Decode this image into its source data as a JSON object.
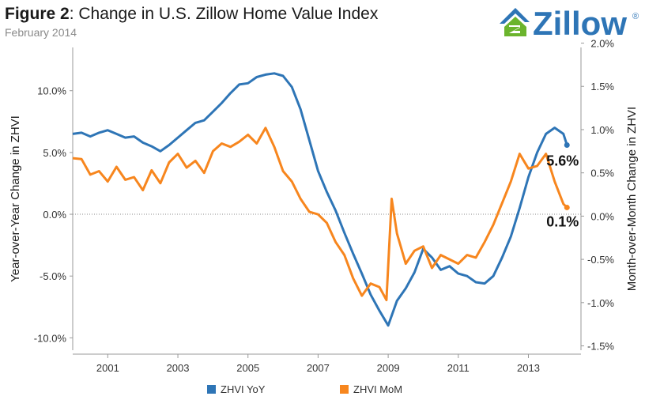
{
  "header": {
    "title_bold": "Figure 2",
    "title_rest": ": Change in U.S. Zillow Home Value Index",
    "subtitle": "February 2014"
  },
  "logo": {
    "text": "Zillow",
    "mark": "®",
    "icon": "zillow-house-icon"
  },
  "colors": {
    "yoy": "#2e75b6",
    "mom": "#f7861e",
    "grid": "#d9d9d9",
    "axis": "#999999"
  },
  "chart_data": {
    "type": "line",
    "x_tick_labels": [
      "2001",
      "2003",
      "2005",
      "2007",
      "2009",
      "2011",
      "2013"
    ],
    "x_tick_years": [
      2001,
      2003,
      2005,
      2007,
      2009,
      2011,
      2013
    ],
    "xlim": [
      2000.0,
      2014.5
    ],
    "ylabel_left": "Year-over-Year Change in ZHVI",
    "ylabel_right": "Month-over-Month Change in ZHVI",
    "ylim_left": [
      -11,
      13.5
    ],
    "ylim_right": [
      -1.55,
      1.95
    ],
    "left_ticks": [
      10,
      5,
      0,
      -5,
      -10
    ],
    "left_tick_labels": [
      "10.0%",
      "5.0%",
      "0.0%",
      "-5.0%",
      "-10.0%"
    ],
    "right_ticks": [
      2,
      1.5,
      1,
      0.5,
      0,
      -0.5,
      -1,
      -1.5
    ],
    "right_tick_labels": [
      "2.0%",
      "1.5%",
      "1.0%",
      "0.5%",
      "0.0%",
      "-0.5%",
      "-1.0%",
      "-1.5%"
    ],
    "series": [
      {
        "name": "ZHVI YoY",
        "axis": "left",
        "x": [
          2000.0,
          2000.25,
          2000.5,
          2000.75,
          2001.0,
          2001.25,
          2001.5,
          2001.75,
          2002.0,
          2002.25,
          2002.5,
          2002.75,
          2003.0,
          2003.25,
          2003.5,
          2003.75,
          2004.0,
          2004.25,
          2004.5,
          2004.75,
          2005.0,
          2005.25,
          2005.5,
          2005.75,
          2006.0,
          2006.25,
          2006.5,
          2006.75,
          2007.0,
          2007.25,
          2007.5,
          2007.75,
          2008.0,
          2008.25,
          2008.5,
          2008.75,
          2009.0,
          2009.25,
          2009.5,
          2009.75,
          2010.0,
          2010.25,
          2010.5,
          2010.75,
          2011.0,
          2011.25,
          2011.5,
          2011.75,
          2012.0,
          2012.25,
          2012.5,
          2012.75,
          2013.0,
          2013.25,
          2013.5,
          2013.75,
          2014.0,
          2014.1
        ],
        "values": [
          6.5,
          6.6,
          6.3,
          6.6,
          6.8,
          6.5,
          6.2,
          6.3,
          5.8,
          5.5,
          5.1,
          5.6,
          6.2,
          6.8,
          7.4,
          7.6,
          8.3,
          9.0,
          9.8,
          10.5,
          10.6,
          11.1,
          11.3,
          11.4,
          11.2,
          10.3,
          8.5,
          6.0,
          3.5,
          1.8,
          0.3,
          -1.5,
          -3.2,
          -4.8,
          -6.5,
          -7.8,
          -9.0,
          -7.0,
          -6.0,
          -4.7,
          -2.8,
          -3.5,
          -4.5,
          -4.2,
          -4.8,
          -5.0,
          -5.5,
          -5.6,
          -5.0,
          -3.5,
          -1.8,
          0.5,
          3.0,
          5.0,
          6.5,
          7.0,
          6.5,
          5.6
        ]
      },
      {
        "name": "ZHVI MoM",
        "axis": "right",
        "x": [
          2000.0,
          2000.25,
          2000.5,
          2000.75,
          2001.0,
          2001.25,
          2001.5,
          2001.75,
          2002.0,
          2002.25,
          2002.5,
          2002.75,
          2003.0,
          2003.25,
          2003.5,
          2003.75,
          2004.0,
          2004.25,
          2004.5,
          2004.75,
          2005.0,
          2005.25,
          2005.5,
          2005.75,
          2006.0,
          2006.25,
          2006.5,
          2006.75,
          2007.0,
          2007.25,
          2007.5,
          2007.75,
          2008.0,
          2008.25,
          2008.5,
          2008.75,
          2008.95,
          2009.1,
          2009.25,
          2009.5,
          2009.75,
          2010.0,
          2010.25,
          2010.5,
          2010.75,
          2011.0,
          2011.25,
          2011.5,
          2011.75,
          2012.0,
          2012.25,
          2012.5,
          2012.75,
          2013.0,
          2013.25,
          2013.5,
          2013.75,
          2014.0,
          2014.1
        ],
        "values": [
          0.67,
          0.66,
          0.48,
          0.52,
          0.4,
          0.57,
          0.42,
          0.45,
          0.3,
          0.53,
          0.38,
          0.62,
          0.72,
          0.56,
          0.64,
          0.5,
          0.75,
          0.84,
          0.8,
          0.86,
          0.94,
          0.84,
          1.02,
          0.8,
          0.52,
          0.4,
          0.2,
          0.05,
          0.02,
          -0.08,
          -0.3,
          -0.45,
          -0.72,
          -0.92,
          -0.78,
          -0.82,
          -0.97,
          0.2,
          -0.2,
          -0.55,
          -0.4,
          -0.35,
          -0.6,
          -0.45,
          -0.5,
          -0.55,
          -0.45,
          -0.48,
          -0.3,
          -0.1,
          0.15,
          0.4,
          0.72,
          0.55,
          0.58,
          0.72,
          0.4,
          0.14,
          0.1
        ]
      }
    ],
    "end_labels": [
      {
        "series": "ZHVI YoY",
        "text": "5.6%"
      },
      {
        "series": "ZHVI MoM",
        "text": "0.1%"
      }
    ],
    "grid": "zero-line only",
    "legend_placement": "bottom"
  }
}
